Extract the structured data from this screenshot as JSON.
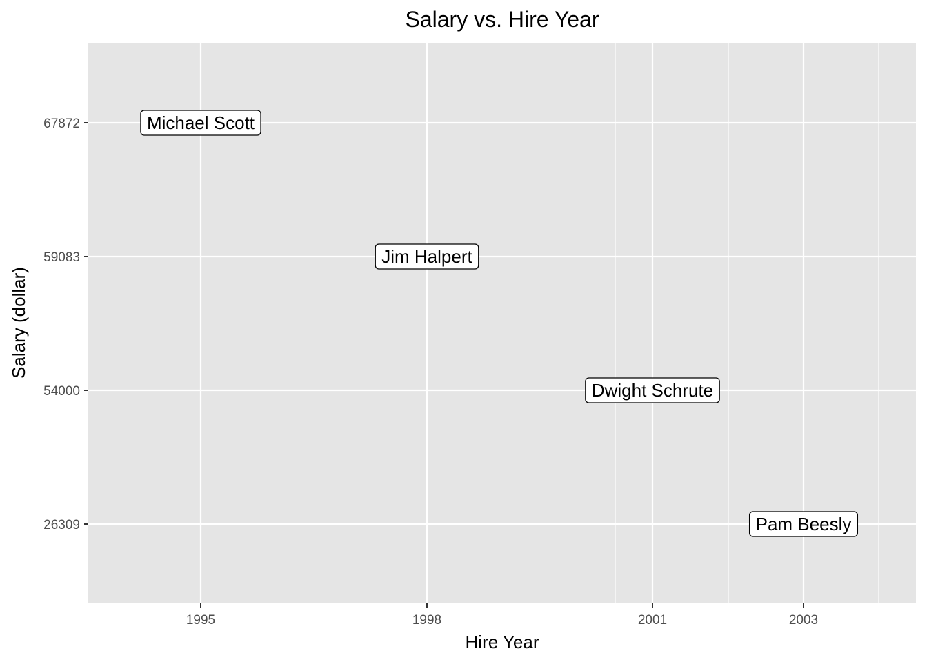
{
  "chart_data": {
    "type": "scatter",
    "title": "Salary vs. Hire Year",
    "xlabel": "Hire Year",
    "ylabel": "Salary (dollar)",
    "x_ticks": [
      1995,
      1998,
      2001,
      2003
    ],
    "y_ticks": [
      "26309",
      "54000",
      "59083",
      "67872"
    ],
    "y_scale": "categorical (discrete, one tick per observed salary)",
    "grid": true,
    "legend": "none",
    "points": [
      {
        "x": 1995,
        "y": "67872",
        "label": "Michael Scott"
      },
      {
        "x": 1998,
        "y": "59083",
        "label": "Jim Halpert"
      },
      {
        "x": 2001,
        "y": "54000",
        "label": "Dwight Schrute"
      },
      {
        "x": 2003,
        "y": "26309",
        "label": "Pam Beesly"
      }
    ],
    "colors": {
      "panel": "#e5e5e5",
      "grid": "#ffffff",
      "label_fill": "#ffffff",
      "label_border": "#000000"
    }
  }
}
